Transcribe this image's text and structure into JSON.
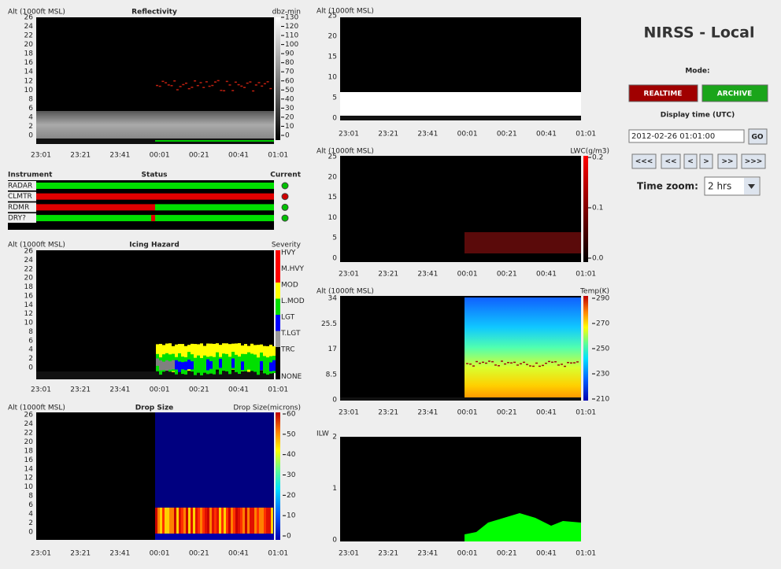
{
  "time_ticks": [
    "23:01",
    "23:21",
    "23:41",
    "00:01",
    "00:21",
    "00:41",
    "01:01"
  ],
  "reflectivity": {
    "y_label": "Alt (1000ft MSL)",
    "title": "Reflectivity",
    "scale_label": "dbz-min",
    "yticks": [
      "26",
      "24",
      "22",
      "20",
      "18",
      "16",
      "14",
      "12",
      "10",
      "8",
      "6",
      "4",
      "2",
      "0"
    ],
    "scale_ticks": [
      "130",
      "120",
      "110",
      "100",
      "90",
      "80",
      "70",
      "60",
      "50",
      "40",
      "30",
      "20",
      "10",
      "0"
    ]
  },
  "status": {
    "headers": [
      "Instrument",
      "Status",
      "Current"
    ],
    "instruments": [
      "RADAR",
      "CLMTR",
      "RDMR",
      "DRY?"
    ]
  },
  "icing": {
    "y_label": "Alt (1000ft MSL)",
    "title": "Icing Hazard",
    "scale_label": "Severity",
    "yticks": [
      "26",
      "24",
      "22",
      "20",
      "18",
      "16",
      "14",
      "12",
      "10",
      "8",
      "6",
      "4",
      "2",
      "0"
    ],
    "levels": [
      "HVY",
      "M.HVY",
      "MOD",
      "L.MOD",
      "LGT",
      "T.LGT",
      "TRC",
      "NONE"
    ]
  },
  "drop_size": {
    "y_label": "Alt (1000ft MSL)",
    "title": "Drop Size",
    "scale_label": "Drop Size(microns)",
    "yticks": [
      "26",
      "24",
      "22",
      "20",
      "18",
      "16",
      "14",
      "12",
      "10",
      "8",
      "6",
      "4",
      "2",
      "0"
    ],
    "scale_ticks": [
      "60",
      "50",
      "40",
      "30",
      "20",
      "10",
      "0"
    ]
  },
  "cloud": {
    "y_label": "Alt (1000ft MSL)",
    "yticks": [
      "25",
      "20",
      "15",
      "10",
      "5",
      "0"
    ]
  },
  "lwc": {
    "y_label": "Alt (1000ft MSL)",
    "scale_label": "LWC(g/m3)",
    "yticks": [
      "25",
      "20",
      "15",
      "10",
      "5",
      "0"
    ],
    "scale_ticks": [
      "0.2",
      "0.1",
      "0.0"
    ]
  },
  "temp": {
    "y_label": "Alt (1000ft MSL)",
    "scale_label": "Temp(K)",
    "yticks": [
      "34",
      "25.5",
      "17",
      "8.5",
      "0"
    ],
    "scale_ticks": [
      "290",
      "270",
      "250",
      "230",
      "210"
    ]
  },
  "ilw": {
    "y_label": "ILW",
    "yticks": [
      "2",
      "1",
      "0"
    ]
  },
  "controls": {
    "title": "NIRSS - Local",
    "mode_label": "Mode:",
    "buttons": [
      "REALTIME",
      "ARCHIVE"
    ],
    "display_label": "Display time (UTC)",
    "time_value": "2012-02-26 01:01:00",
    "go": "GO",
    "nav": [
      "<<<",
      "<<",
      "<",
      ">",
      ">>",
      ">>>"
    ],
    "zoom_label": "Time zoom:",
    "zoom_value": "2 hrs"
  }
}
